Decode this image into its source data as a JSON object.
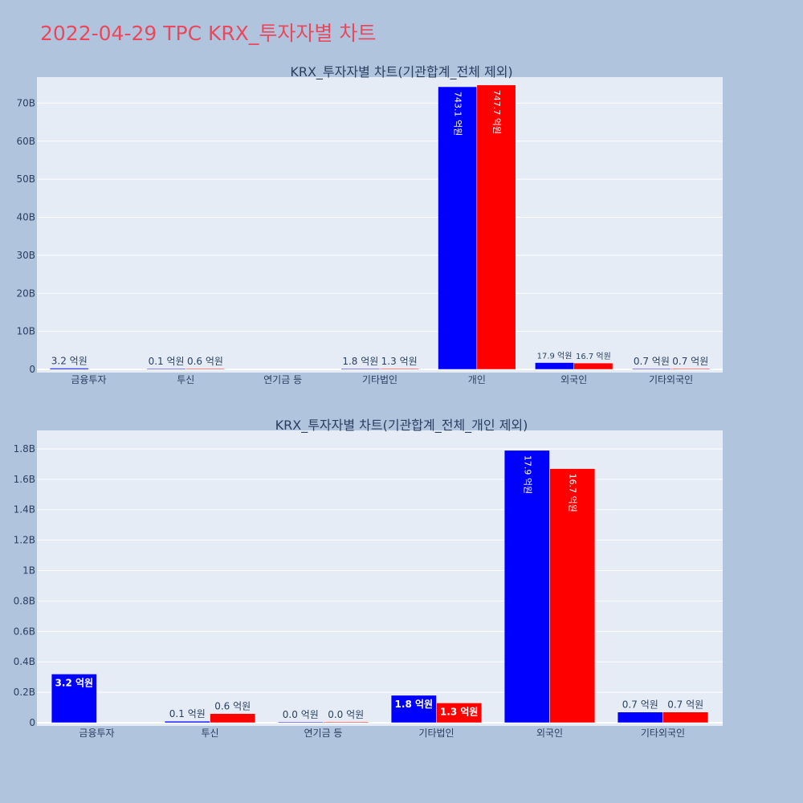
{
  "page": {
    "title": "2022-04-29 TPC KRX_투자자별 차트"
  },
  "colors": {
    "series1": "#0000ff",
    "series2": "#ff0000",
    "plot_bg": "#e5ecf6",
    "paper_bg": "#b0c4de",
    "title": "#e8495c"
  },
  "chart_data": [
    {
      "type": "bar",
      "title": "KRX_투자자별 차트(기관합계_전체 제외)",
      "categories": [
        "금융투자",
        "투신",
        "연기금 등",
        "기타법인",
        "개인",
        "외국인",
        "기타외국인"
      ],
      "ylim": [
        0,
        76
      ],
      "yticks": [
        0,
        10,
        20,
        30,
        40,
        50,
        60,
        70
      ],
      "ytick_labels": [
        "0",
        "10B",
        "20B",
        "30B",
        "40B",
        "50B",
        "60B",
        "70B"
      ],
      "series": [
        {
          "color": "#0000ff",
          "values": [
            0.32,
            0.01,
            null,
            0.18,
            74.31,
            1.79,
            0.07
          ],
          "labels": [
            "3.2 억원",
            "0.1 억원",
            "",
            "1.8 억원",
            "743.1 억원",
            "17.9 억원",
            "0.7 억원"
          ]
        },
        {
          "color": "#ff0000",
          "values": [
            null,
            0.06,
            null,
            0.13,
            74.77,
            1.67,
            0.07
          ],
          "labels": [
            "",
            "0.6 억원",
            "",
            "1.3 억원",
            "747.7 억원",
            "16.7 억원",
            "0.7 억원"
          ]
        }
      ],
      "grid": true
    },
    {
      "type": "bar",
      "title": "KRX_투자자별 차트(기관합계_전체_개인 제외)",
      "categories": [
        "금융투자",
        "투신",
        "연기금 등",
        "기타법인",
        "외국인",
        "기타외국인"
      ],
      "ylim": [
        0,
        1.9
      ],
      "yticks": [
        0,
        0.2,
        0.4,
        0.6,
        0.8,
        1.0,
        1.2,
        1.4,
        1.6,
        1.8
      ],
      "ytick_labels": [
        "0",
        "0.2B",
        "0.4B",
        "0.6B",
        "0.8B",
        "1B",
        "1.2B",
        "1.4B",
        "1.6B",
        "1.8B"
      ],
      "series": [
        {
          "color": "#0000ff",
          "values": [
            0.32,
            0.01,
            0.0,
            0.18,
            1.79,
            0.07
          ],
          "labels": [
            "3.2 억원",
            "0.1 억원",
            "0.0 억원",
            "1.8 억원",
            "17.9 억원",
            "0.7 억원"
          ]
        },
        {
          "color": "#ff0000",
          "values": [
            null,
            0.06,
            0.0,
            0.13,
            1.67,
            0.07
          ],
          "labels": [
            "",
            "0.6 억원",
            "0.0 억원",
            "1.3 억원",
            "16.7 억원",
            "0.7 억원"
          ]
        }
      ],
      "grid": true
    }
  ]
}
